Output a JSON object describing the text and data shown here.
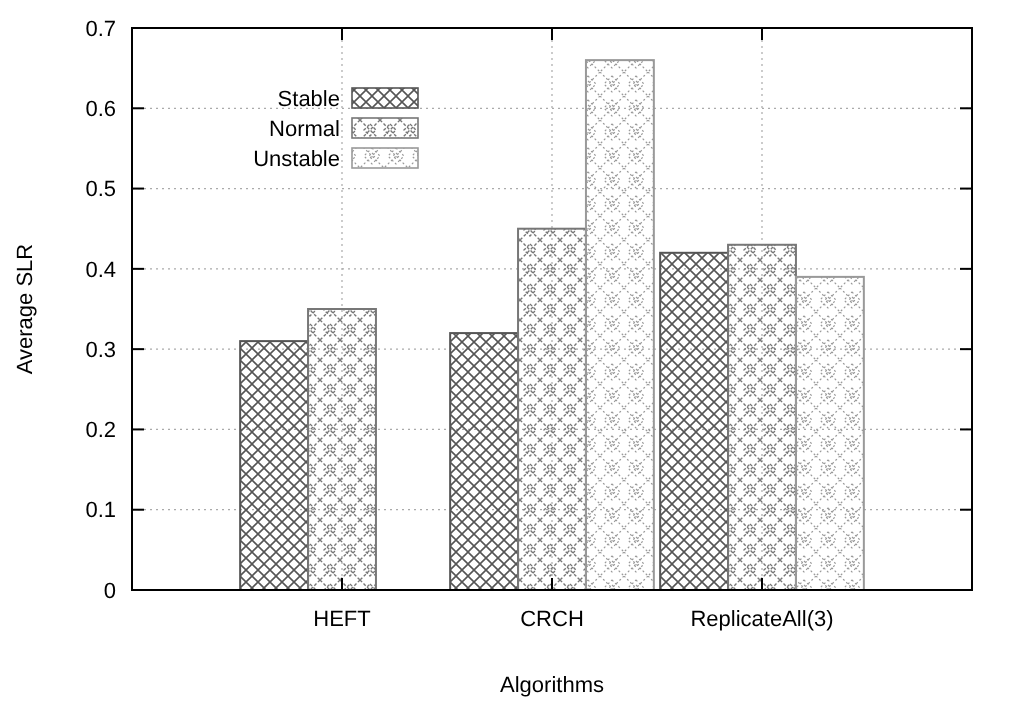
{
  "chart_data": {
    "type": "bar",
    "xlabel": "Algorithms",
    "ylabel": "Average SLR",
    "categories": [
      "HEFT",
      "CRCH",
      "ReplicateAll(3)"
    ],
    "series": [
      {
        "name": "Stable",
        "color": "#555555",
        "values": [
          0.31,
          0.32,
          0.42
        ]
      },
      {
        "name": "Normal",
        "color": "#777777",
        "values": [
          0.35,
          0.45,
          0.43
        ]
      },
      {
        "name": "Unstable",
        "color": "#999999",
        "values": [
          null,
          0.66,
          0.39
        ]
      }
    ],
    "ylim": [
      0,
      0.7
    ],
    "yticks": [
      0,
      0.1,
      0.2,
      0.3,
      0.4,
      0.5,
      0.6,
      0.7
    ],
    "grid": true,
    "legend": "top left"
  }
}
